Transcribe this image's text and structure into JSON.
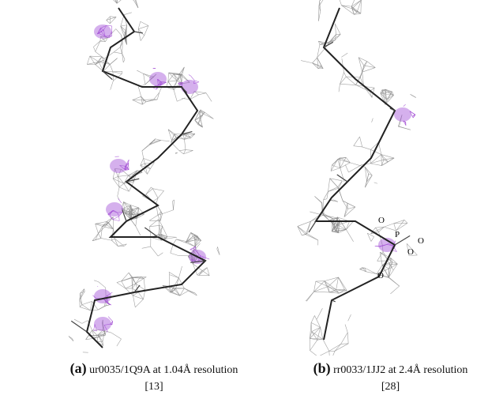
{
  "panels": [
    {
      "label": "(a)",
      "caption": "ur0035/1Q9A at 1.04Å resolution",
      "reference": "[13]"
    },
    {
      "label": "(b)",
      "caption": "rr0033/1JJ2 at 2.4Å resolution",
      "reference": "[28]",
      "atom_labels": [
        "O",
        "P",
        "O",
        "O",
        "O"
      ]
    }
  ]
}
